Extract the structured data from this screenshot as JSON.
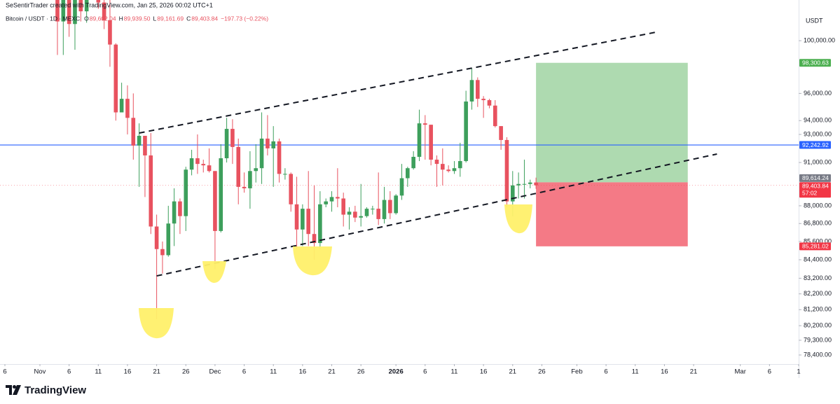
{
  "chart_data": {
    "type": "candlestick",
    "header": {
      "attribution": "SeSentirTrader created with TradingView.com, Jan 25, 2026 00:02 UTC+1",
      "symbol": "Bitcoin / USDT · 1D · MEXC",
      "ohlc": [
        {
          "key": "O",
          "value": "89,602.04"
        },
        {
          "key": "H",
          "value": "89,939.50"
        },
        {
          "key": "L",
          "value": "89,161.69"
        },
        {
          "key": "C",
          "value": "89,403.84"
        }
      ],
      "change": "−197.73 (−0.22%)"
    },
    "currency": "USDT",
    "footer": "TradingView",
    "up_color": "#3d9f5c",
    "down_color": "#e8525f",
    "grid": false,
    "log_scale": true,
    "x": [
      "Nov 4",
      "Nov 5",
      "Nov 6",
      "Nov 7",
      "Nov 8",
      "Nov 9",
      "Nov 10",
      "Nov 11",
      "Nov 12",
      "Nov 13",
      "Nov 14",
      "Nov 15",
      "Nov 16",
      "Nov 17",
      "Nov 18",
      "Nov 19",
      "Nov 20",
      "Nov 21",
      "Nov 22",
      "Nov 23",
      "Nov 24",
      "Nov 25",
      "Nov 26",
      "Nov 27",
      "Nov 28",
      "Nov 29",
      "Nov 30",
      "Dec 1",
      "Dec 2",
      "Dec 3",
      "Dec 4",
      "Dec 5",
      "Dec 6",
      "Dec 7",
      "Dec 8",
      "Dec 9",
      "Dec 10",
      "Dec 11",
      "Dec 12",
      "Dec 13",
      "Dec 14",
      "Dec 15",
      "Dec 16",
      "Dec 17",
      "Dec 18",
      "Dec 19",
      "Dec 20",
      "Dec 21",
      "Dec 22",
      "Dec 23",
      "Dec 24",
      "Dec 25",
      "Dec 26",
      "Dec 27",
      "Dec 28",
      "Dec 29",
      "Dec 30",
      "Dec 31",
      "Jan 1",
      "Jan 2",
      "Jan 3",
      "Jan 4",
      "Jan 5",
      "Jan 6",
      "Jan 7",
      "Jan 8",
      "Jan 9",
      "Jan 10",
      "Jan 11",
      "Jan 12",
      "Jan 13",
      "Jan 14",
      "Jan 15",
      "Jan 16",
      "Jan 17",
      "Jan 18",
      "Jan 19",
      "Jan 20",
      "Jan 21",
      "Jan 22",
      "Jan 23",
      "Jan 24",
      "Jan 25"
    ],
    "open": [
      104700,
      101500,
      103900,
      101300,
      103400,
      102300,
      104700,
      105900,
      103000,
      101600,
      99700,
      94600,
      95600,
      94200,
      92200,
      92900,
      91500,
      86600,
      85100,
      84700,
      86800,
      88300,
      87300,
      90500,
      91300,
      90900,
      90800,
      90400,
      86300,
      91300,
      93400,
      92100,
      89300,
      89200,
      90400,
      90600,
      92700,
      92000,
      92500,
      90200,
      90200,
      88100,
      86400,
      87800,
      86100,
      85500,
      88100,
      88300,
      88600,
      88500,
      87400,
      87600,
      87200,
      87300,
      87800,
      87800,
      87100,
      88400,
      87500,
      88700,
      89900,
      90600,
      91400,
      93800,
      93700,
      91200,
      90900,
      90500,
      90400,
      90600,
      91100,
      95400,
      97000,
      95600,
      95500,
      95100,
      93600,
      92600,
      88300,
      89400,
      89500,
      89500,
      89602.04
    ],
    "high": [
      106500,
      104500,
      104200,
      104000,
      103400,
      104900,
      106600,
      107400,
      105300,
      104000,
      99800,
      96800,
      96600,
      96000,
      93800,
      92900,
      93100,
      87400,
      85600,
      88000,
      89200,
      88500,
      90700,
      91900,
      93000,
      91200,
      92000,
      90400,
      92300,
      94200,
      94100,
      92700,
      90300,
      91800,
      92300,
      94600,
      94400,
      93600,
      92700,
      90600,
      90300,
      90000,
      88100,
      90400,
      89400,
      89000,
      88500,
      89000,
      90600,
      88900,
      87900,
      88000,
      89500,
      87900,
      88000,
      90300,
      89300,
      89000,
      88800,
      90900,
      90700,
      91800,
      94800,
      94400,
      93700,
      91500,
      92000,
      90800,
      91100,
      92400,
      96200,
      97900,
      97200,
      95800,
      95600,
      95500,
      93600,
      92800,
      90400,
      90300,
      91200,
      89800,
      89939.5
    ],
    "low": [
      98900,
      98900,
      100300,
      99300,
      101500,
      101400,
      104400,
      102500,
      100900,
      98000,
      94000,
      94600,
      93000,
      91200,
      89300,
      88600,
      86100,
      80600,
      83500,
      84600,
      85300,
      86100,
      86300,
      90100,
      90200,
      90300,
      90300,
      83800,
      86200,
      91000,
      90900,
      88100,
      88900,
      87800,
      89600,
      89500,
      91500,
      89300,
      89600,
      89800,
      87600,
      85100,
      85300,
      85300,
      84400,
      85100,
      87900,
      87600,
      87900,
      86600,
      86400,
      86900,
      86600,
      87200,
      87400,
      86700,
      86800,
      87100,
      87400,
      88400,
      89300,
      90500,
      91100,
      91200,
      90800,
      89300,
      89400,
      90300,
      90200,
      90000,
      91000,
      94800,
      95000,
      94200,
      94900,
      93500,
      91900,
      87900,
      87300,
      88500,
      88500,
      89200,
      89161.69
    ],
    "close": [
      101500,
      103900,
      101300,
      103400,
      102300,
      104700,
      105900,
      103000,
      101600,
      99700,
      94600,
      95600,
      94200,
      92200,
      92900,
      91500,
      86600,
      85100,
      84700,
      86800,
      88300,
      87300,
      90500,
      91300,
      90900,
      90800,
      90400,
      86300,
      91300,
      93400,
      92100,
      89300,
      89200,
      90400,
      90600,
      92700,
      92000,
      92500,
      90200,
      90200,
      88100,
      86400,
      87800,
      86100,
      85500,
      88100,
      88300,
      88600,
      88500,
      87400,
      87600,
      87200,
      87300,
      87800,
      87800,
      87100,
      88400,
      87500,
      88700,
      89900,
      90600,
      91400,
      93800,
      93700,
      91200,
      90900,
      90500,
      90400,
      90600,
      91100,
      95400,
      97000,
      95600,
      95500,
      95100,
      93600,
      92600,
      88300,
      89400,
      89500,
      89500,
      89600,
      89403.84
    ],
    "xlim": [
      "Oct 26",
      "Mar 11"
    ],
    "xticks": [
      {
        "value": "Oct 26",
        "label": "6"
      },
      {
        "value": "Nov 1",
        "label": "Nov"
      },
      {
        "value": "Nov 6",
        "label": "6"
      },
      {
        "value": "Nov 11",
        "label": "11"
      },
      {
        "value": "Nov 16",
        "label": "16"
      },
      {
        "value": "Nov 21",
        "label": "21"
      },
      {
        "value": "Nov 26",
        "label": "26"
      },
      {
        "value": "Dec 1",
        "label": "Dec"
      },
      {
        "value": "Dec 6",
        "label": "6"
      },
      {
        "value": "Dec 11",
        "label": "11"
      },
      {
        "value": "Dec 16",
        "label": "16"
      },
      {
        "value": "Dec 21",
        "label": "21"
      },
      {
        "value": "Dec 26",
        "label": "26"
      },
      {
        "value": "Jan 1",
        "label": "2026"
      },
      {
        "value": "Jan 6",
        "label": "6"
      },
      {
        "value": "Jan 11",
        "label": "11"
      },
      {
        "value": "Jan 16",
        "label": "16"
      },
      {
        "value": "Jan 21",
        "label": "21"
      },
      {
        "value": "Jan 26",
        "label": "26"
      },
      {
        "value": "Feb 1",
        "label": "Feb"
      },
      {
        "value": "Feb 6",
        "label": "6"
      },
      {
        "value": "Feb 11",
        "label": "11"
      },
      {
        "value": "Feb 16",
        "label": "16"
      },
      {
        "value": "Feb 21",
        "label": "21"
      },
      {
        "value": "Mar 1",
        "label": "Mar"
      },
      {
        "value": "Mar 6",
        "label": "6"
      },
      {
        "value": "Mar 11",
        "label": "1"
      }
    ],
    "ylim": [
      77850,
      103200
    ],
    "yticks": [
      {
        "value": 100000,
        "label": "100,000.00"
      },
      {
        "value": 96000,
        "label": "96,000.00"
      },
      {
        "value": 94000,
        "label": "94,000.00"
      },
      {
        "value": 93000,
        "label": "93,000.00"
      },
      {
        "value": 91000,
        "label": "91,000.00"
      },
      {
        "value": 88000,
        "label": "88,000.00"
      },
      {
        "value": 86800,
        "label": "86,800.00"
      },
      {
        "value": 85600,
        "label": "85,600.00"
      },
      {
        "value": 84400,
        "label": "84,400.00"
      },
      {
        "value": 83200,
        "label": "83,200.00"
      },
      {
        "value": 82200,
        "label": "82,200.00"
      },
      {
        "value": 81200,
        "label": "81,200.00"
      },
      {
        "value": 80200,
        "label": "80,200.00"
      },
      {
        "value": 79300,
        "label": "79,300.00"
      },
      {
        "value": 78400,
        "label": "78,400.00"
      }
    ],
    "horizontal_line": {
      "value": 92242.92,
      "label": "92,242.92",
      "color": "#2962ff"
    },
    "last_price": {
      "value": 89403.84,
      "label": "89,403.84",
      "countdown": "57:02",
      "color": "#f23645"
    },
    "position": {
      "start": "Jan 25",
      "end": "Feb 20",
      "target": {
        "value": 98300.63,
        "label": "98,300.63",
        "color": "#4caf50"
      },
      "entry": {
        "value": 89614.24,
        "label": "89,614.24",
        "color": "#787b86"
      },
      "stop": {
        "value": 85281.02,
        "label": "85,281.02",
        "color": "#f23645"
      },
      "profit_fill": "#a5d6a7",
      "loss_fill": "#f47a86"
    },
    "trendlines": [
      {
        "from": {
          "x": "Nov 18",
          "y": 93100
        },
        "to": {
          "x": "Feb 15",
          "y": 100700
        }
      },
      {
        "from": {
          "x": "Nov 21",
          "y": 83350
        },
        "to": {
          "x": "Feb 25",
          "y": 91600
        }
      }
    ]
  }
}
